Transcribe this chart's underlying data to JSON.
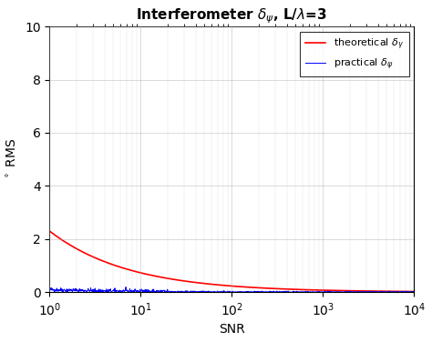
{
  "title": "Interferometer $\\delta_{\\psi}$, L/$\\lambda$=3",
  "xlabel": "SNR",
  "ylabel": "$^\\circ$ RMS",
  "xlim_log": [
    0,
    4
  ],
  "ylim": [
    0,
    10
  ],
  "yticks": [
    0,
    2,
    4,
    6,
    8,
    10
  ],
  "legend_theoretical": "theoretical $\\delta_{\\gamma}$",
  "legend_practical": "practical $\\delta_{\\psi}$",
  "line_color_theoretical": "#FF0000",
  "line_color_practical": "#0000FF",
  "n_points": 1000,
  "background_color": "#FFFFFF",
  "grid_color": "#aaaaaa",
  "theoretical_amplitude": 2.3,
  "practical_noise_amplitude": 0.12
}
